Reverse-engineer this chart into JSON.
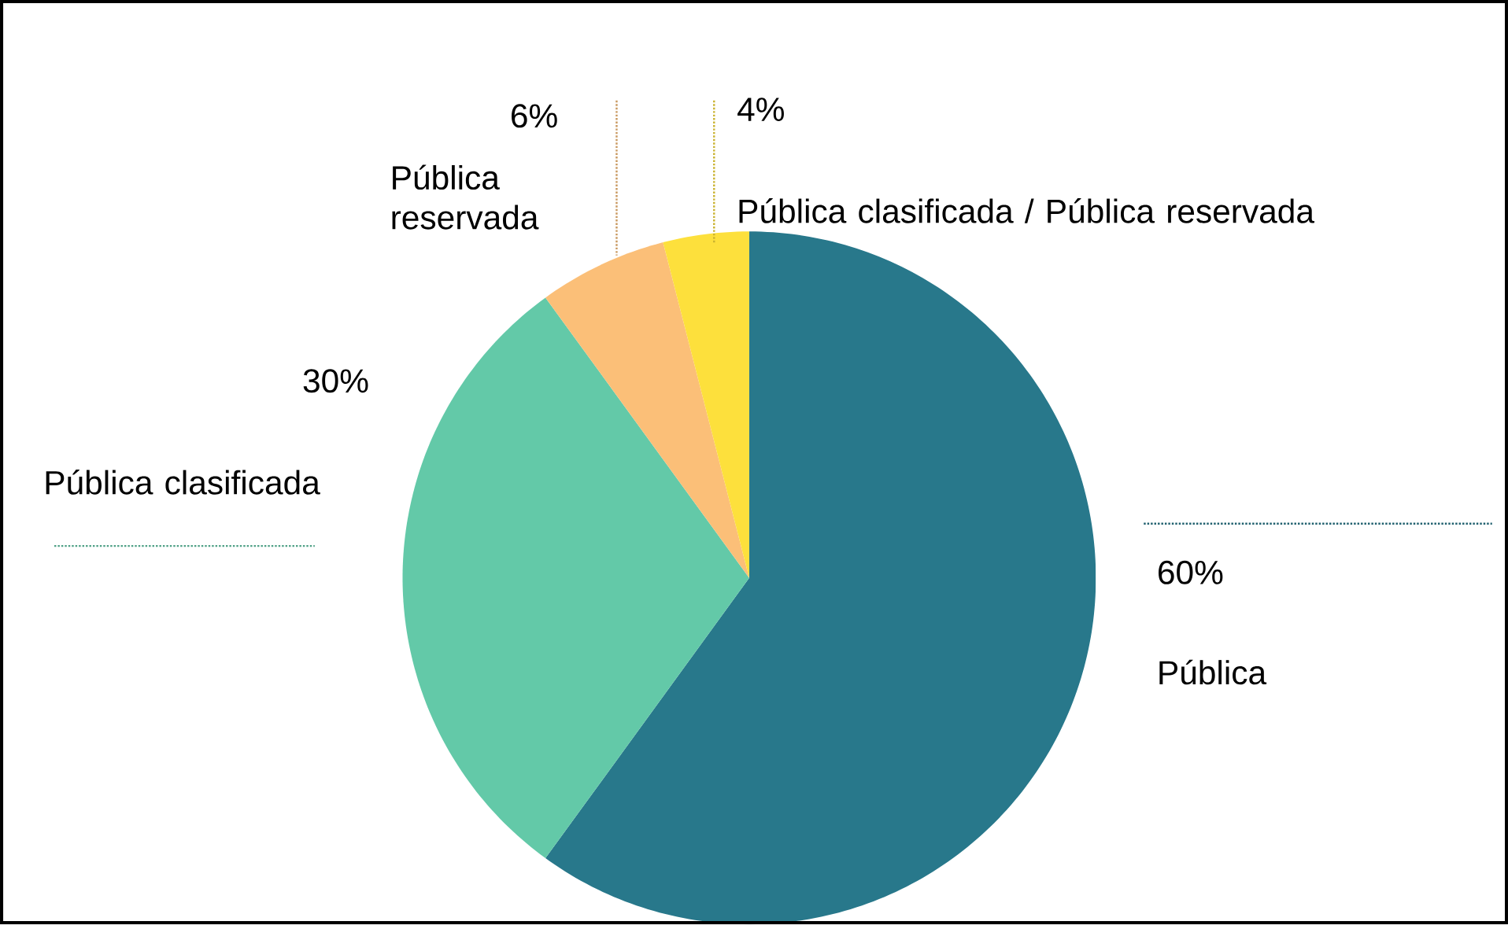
{
  "chart_data": {
    "type": "pie",
    "categories": [
      "Pública",
      "Pública clasificada",
      "Pública reservada",
      "Pública clasificada / Pública reservada"
    ],
    "values": [
      60,
      30,
      6,
      4
    ],
    "colors": [
      "#28788b",
      "#63c9a8",
      "#fbbf78",
      "#fde03c"
    ],
    "value_labels": [
      "60%",
      "30%",
      "6%",
      "4%"
    ]
  }
}
